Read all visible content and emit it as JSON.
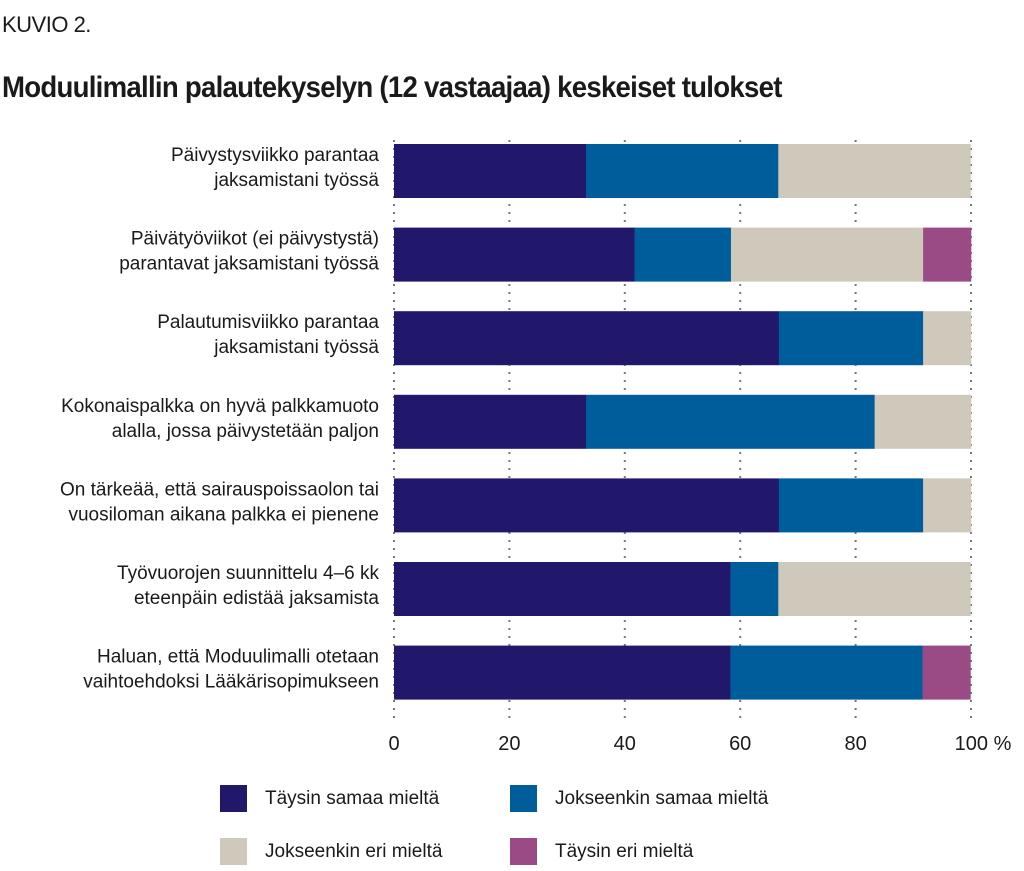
{
  "figure_label": "KUVIO 2.",
  "chart_data": {
    "type": "bar",
    "orientation": "horizontal",
    "stacked": true,
    "title": "Moduulimallin palautekyselyn (12 vastaajaa) keskeiset tulokset",
    "xlabel": "",
    "ylabel": "",
    "xlim": [
      0,
      100
    ],
    "x_unit": "%",
    "x_ticks": [
      "0",
      "20",
      "40",
      "60",
      "80",
      "100"
    ],
    "grid": "vertical dotted",
    "legend_position": "bottom",
    "categories": [
      [
        "Päivystysviikko parantaa",
        "jaksamistani työssä"
      ],
      [
        "Päivätyöviikot (ei päivystystä)",
        "parantavat jaksamistani työssä"
      ],
      [
        "Palautumisviikko parantaa",
        "jaksamistani työssä"
      ],
      [
        "Kokonaispalkka on hyvä palkkamuoto",
        "alalla, jossa päivystetään paljon"
      ],
      [
        "On tärkeää, että sairauspoissaolon tai",
        "vuosiloman aikana palkka ei pienene"
      ],
      [
        "Työvuorojen suunnittelu 4–6 kk",
        "eteenpäin edistää jaksamista"
      ],
      [
        "Haluan, että Moduulimalli otetaan",
        "vaihtoehdoksi Lääkärisopimukseen"
      ]
    ],
    "series": [
      {
        "name": "Täysin samaa mieltä",
        "color": "#21186b",
        "values": [
          33.3,
          41.7,
          66.7,
          33.3,
          66.7,
          58.3,
          58.3
        ]
      },
      {
        "name": "Jokseenkin samaa mieltä",
        "color": "#005d9b",
        "values": [
          33.3,
          16.7,
          25.0,
          50.0,
          25.0,
          8.3,
          33.3
        ]
      },
      {
        "name": "Jokseenkin eri mieltä",
        "color": "#cfc9bc",
        "values": [
          33.3,
          33.3,
          8.3,
          16.7,
          8.3,
          33.3,
          0
        ]
      },
      {
        "name": "Täysin eri mieltä",
        "color": "#9a4a85",
        "values": [
          0,
          8.3,
          0,
          0,
          0,
          0,
          8.3
        ]
      }
    ]
  }
}
